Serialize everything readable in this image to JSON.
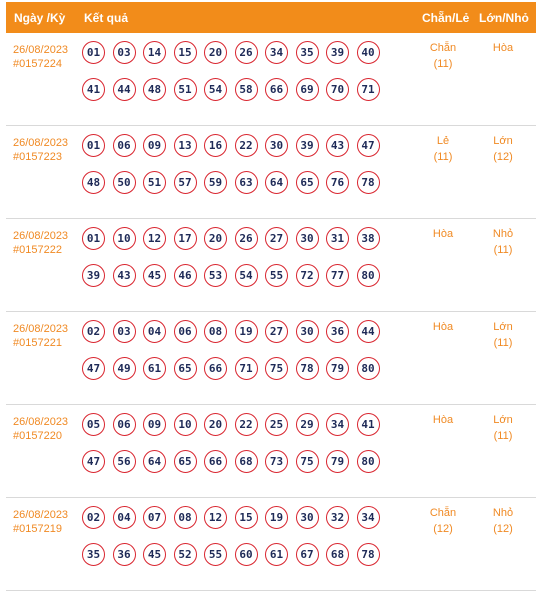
{
  "headers": {
    "date": "Ngày /Kỳ",
    "result": "Kết quả",
    "parity": "Chẵn/Lẻ",
    "size": "Lớn/Nhỏ"
  },
  "rows": [
    {
      "date": "26/08/2023",
      "draw": "#0157224",
      "line1": [
        "01",
        "03",
        "14",
        "15",
        "20",
        "26",
        "34",
        "35",
        "39",
        "40"
      ],
      "line2": [
        "41",
        "44",
        "48",
        "51",
        "54",
        "58",
        "66",
        "69",
        "70",
        "71"
      ],
      "parity": "Chẵn",
      "parity_count": "(11)",
      "size": "Hòa",
      "size_count": ""
    },
    {
      "date": "26/08/2023",
      "draw": "#0157223",
      "line1": [
        "01",
        "06",
        "09",
        "13",
        "16",
        "22",
        "30",
        "39",
        "43",
        "47"
      ],
      "line2": [
        "48",
        "50",
        "51",
        "57",
        "59",
        "63",
        "64",
        "65",
        "76",
        "78"
      ],
      "parity": "Lẻ",
      "parity_count": "(11)",
      "size": "Lớn",
      "size_count": "(12)"
    },
    {
      "date": "26/08/2023",
      "draw": "#0157222",
      "line1": [
        "01",
        "10",
        "12",
        "17",
        "20",
        "26",
        "27",
        "30",
        "31",
        "38"
      ],
      "line2": [
        "39",
        "43",
        "45",
        "46",
        "53",
        "54",
        "55",
        "72",
        "77",
        "80"
      ],
      "parity": "Hòa",
      "parity_count": "",
      "size": "Nhỏ",
      "size_count": "(11)"
    },
    {
      "date": "26/08/2023",
      "draw": "#0157221",
      "line1": [
        "02",
        "03",
        "04",
        "06",
        "08",
        "19",
        "27",
        "30",
        "36",
        "44"
      ],
      "line2": [
        "47",
        "49",
        "61",
        "65",
        "66",
        "71",
        "75",
        "78",
        "79",
        "80"
      ],
      "parity": "Hòa",
      "parity_count": "",
      "size": "Lớn",
      "size_count": "(11)"
    },
    {
      "date": "26/08/2023",
      "draw": "#0157220",
      "line1": [
        "05",
        "06",
        "09",
        "10",
        "20",
        "22",
        "25",
        "29",
        "34",
        "41"
      ],
      "line2": [
        "47",
        "56",
        "64",
        "65",
        "66",
        "68",
        "73",
        "75",
        "79",
        "80"
      ],
      "parity": "Hòa",
      "parity_count": "",
      "size": "Lớn",
      "size_count": "(11)"
    },
    {
      "date": "26/08/2023",
      "draw": "#0157219",
      "line1": [
        "02",
        "04",
        "07",
        "08",
        "12",
        "15",
        "19",
        "30",
        "32",
        "34"
      ],
      "line2": [
        "35",
        "36",
        "45",
        "52",
        "55",
        "60",
        "61",
        "67",
        "68",
        "78"
      ],
      "parity": "Chẵn",
      "parity_count": "(12)",
      "size": "Nhỏ",
      "size_count": "(12)"
    }
  ]
}
